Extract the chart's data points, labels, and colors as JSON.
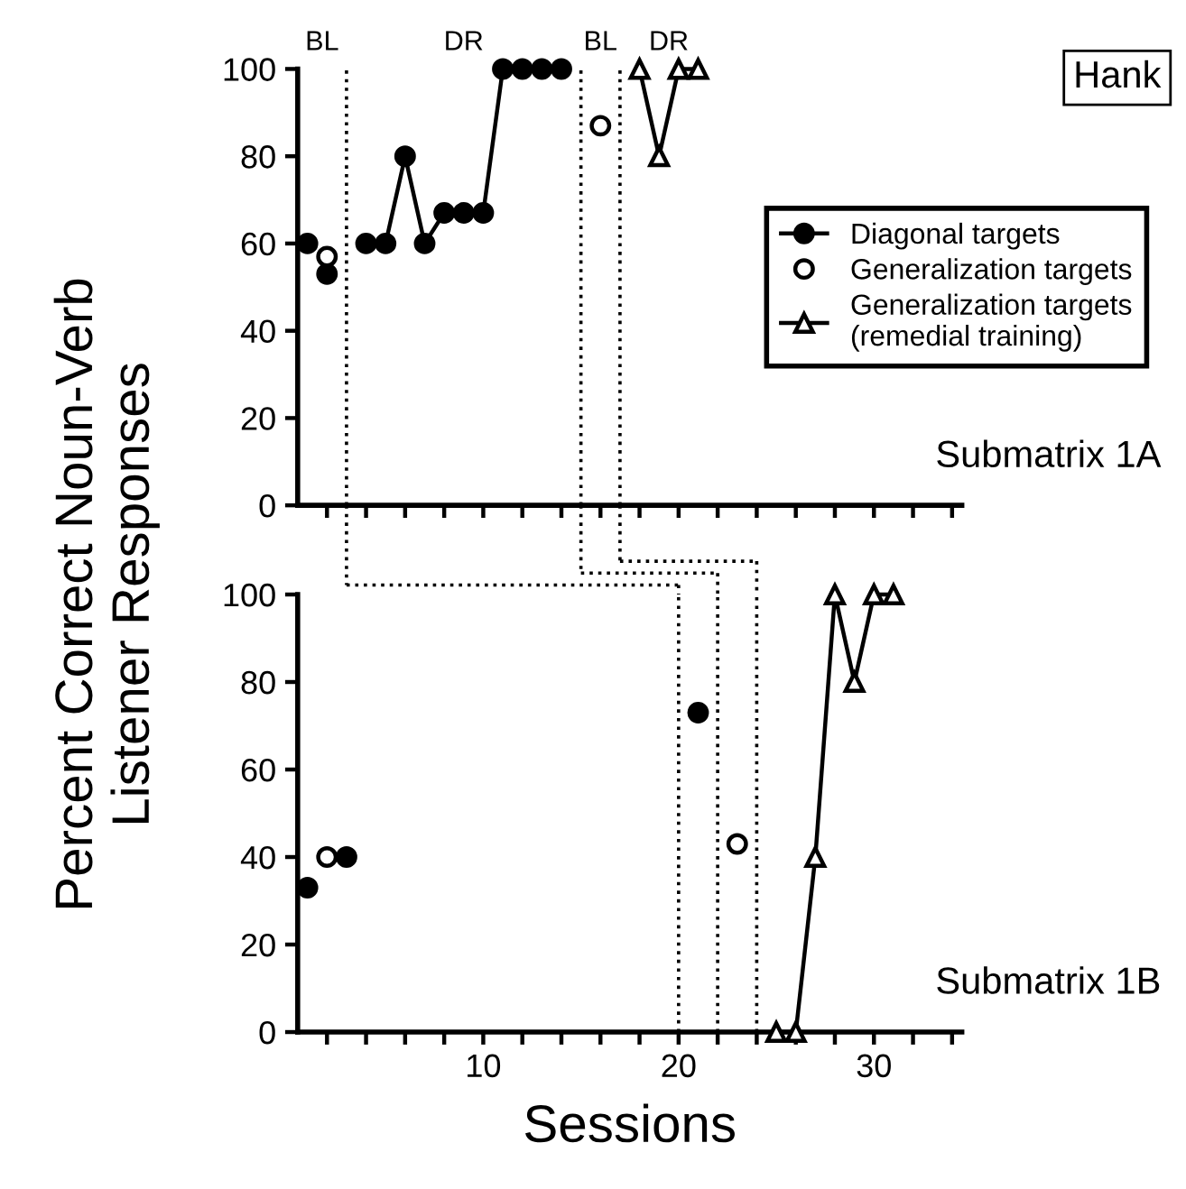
{
  "chart_data": [
    {
      "type": "line",
      "ylabel": "Percent Correct Noun-Verb\nListener Responses",
      "xlim": [
        0.5,
        34.5
      ],
      "ylim": [
        0,
        100
      ],
      "xticks": [
        {
          "value": 2,
          "label": null
        },
        {
          "value": 4,
          "label": null
        },
        {
          "value": 6,
          "label": null
        },
        {
          "value": 8,
          "label": null
        },
        {
          "value": 10,
          "label": null
        },
        {
          "value": 12,
          "label": null
        },
        {
          "value": 14,
          "label": null
        },
        {
          "value": 16,
          "label": null
        },
        {
          "value": 18,
          "label": null
        },
        {
          "value": 20,
          "label": null
        },
        {
          "value": 22,
          "label": null
        },
        {
          "value": 24,
          "label": null
        },
        {
          "value": 26,
          "label": null
        },
        {
          "value": 28,
          "label": null
        },
        {
          "value": 30,
          "label": null
        },
        {
          "value": 32,
          "label": null
        },
        {
          "value": 34,
          "label": null
        }
      ],
      "yticks": [
        0,
        20,
        40,
        60,
        80,
        100
      ],
      "tick_labels": "y",
      "grid": false,
      "legend": "right",
      "series": [
        {
          "type": "scatter",
          "color": "#000000",
          "marker": "circle",
          "x": [
            1,
            2
          ],
          "values": [
            60,
            53
          ]
        },
        {
          "name": "Diagonal targets",
          "color": "#000000",
          "marker": "circle",
          "line_style": "solid",
          "x": [
            4,
            5,
            6,
            7,
            8,
            9,
            10,
            11,
            12,
            13,
            14
          ],
          "values": [
            60,
            60,
            80,
            60,
            67,
            67,
            67,
            100,
            100,
            100,
            100
          ]
        },
        {
          "name": "Generalization targets",
          "type": "scatter",
          "color": "#ffffff",
          "marker": "circle",
          "x": [
            2,
            16
          ],
          "values": [
            57,
            87
          ]
        },
        {
          "name": "Generalization targets\n(remedial training)",
          "color": "#ffffff",
          "marker": "triangle",
          "line_style": "solid",
          "x": [
            18,
            19,
            20,
            21
          ],
          "values": [
            100,
            80,
            100,
            100
          ]
        }
      ],
      "ref_lines": [
        {
          "axis": "x",
          "value": 3,
          "line_style": "dotted",
          "color": "#000000"
        },
        {
          "axis": "x",
          "value": 15,
          "line_style": "dotted",
          "color": "#000000"
        },
        {
          "axis": "x",
          "value": 17,
          "line_style": "dotted",
          "color": "#000000"
        }
      ],
      "annotations": [
        "BL",
        "DR",
        "BL",
        "DR",
        "Hank",
        "Submatrix 1A"
      ]
    },
    {
      "type": "line",
      "xlabel": "Sessions",
      "xlim": [
        0.5,
        34.5
      ],
      "ylim": [
        0,
        100
      ],
      "xticks": [
        {
          "value": 2,
          "label": null
        },
        {
          "value": 4,
          "label": null
        },
        {
          "value": 6,
          "label": null
        },
        {
          "value": 8,
          "label": null
        },
        10,
        {
          "value": 12,
          "label": null
        },
        {
          "value": 14,
          "label": null
        },
        {
          "value": 16,
          "label": null
        },
        {
          "value": 18,
          "label": null
        },
        20,
        {
          "value": 22,
          "label": null
        },
        {
          "value": 24,
          "label": null
        },
        {
          "value": 26,
          "label": null
        },
        {
          "value": 28,
          "label": null
        },
        30,
        {
          "value": 32,
          "label": null
        },
        {
          "value": 34,
          "label": null
        }
      ],
      "yticks": [
        0,
        20,
        40,
        60,
        80,
        100
      ],
      "grid": false,
      "series": [
        {
          "type": "scatter",
          "color": "#000000",
          "marker": "circle",
          "x": [
            1,
            3,
            21
          ],
          "values": [
            33,
            40,
            73
          ]
        },
        {
          "type": "scatter",
          "color": "#ffffff",
          "marker": "circle",
          "x": [
            2,
            23
          ],
          "values": [
            40,
            43
          ]
        },
        {
          "color": "#ffffff",
          "marker": "triangle",
          "line_style": "solid",
          "x": [
            25,
            26,
            27,
            28,
            29,
            30,
            31
          ],
          "values": [
            0,
            0,
            40,
            100,
            80,
            100,
            100
          ]
        }
      ],
      "ref_lines": [
        {
          "axis": "x",
          "value": 20,
          "line_style": "dotted",
          "color": "#000000"
        },
        {
          "axis": "x",
          "value": 22,
          "line_style": "dotted",
          "color": "#000000"
        },
        {
          "axis": "x",
          "value": 24,
          "line_style": "dotted",
          "color": "#000000"
        }
      ],
      "annotations": [
        "Submatrix 1B"
      ]
    }
  ]
}
